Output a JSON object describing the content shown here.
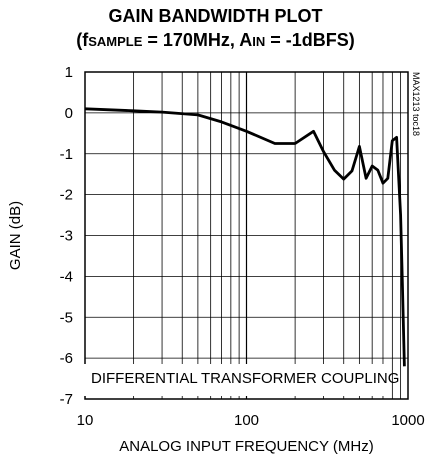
{
  "chart_data": {
    "type": "line",
    "title": "GAIN BANDWIDTH PLOT",
    "subtitle_parts": {
      "open": "(f",
      "f_sub": "SAMPLE",
      "mid": " = 170MHz, A",
      "a_sub": "IN",
      "close": " = -1dBFS)"
    },
    "xlabel": "ANALOG INPUT FREQUENCY (MHz)",
    "ylabel": "GAIN (dB)",
    "xscale": "log",
    "xlim": [
      10,
      1000
    ],
    "ylim": [
      -7,
      1
    ],
    "grid": true,
    "xticks": [
      10,
      100,
      1000
    ],
    "xtick_labels": [
      "10",
      "100",
      "1000"
    ],
    "yticks": [
      1,
      0,
      -1,
      -2,
      -3,
      -4,
      -5,
      -6,
      -7
    ],
    "ytick_labels": [
      "1",
      "0",
      "-1",
      "-2",
      "-3",
      "-4",
      "-5",
      "-6",
      "-7"
    ],
    "annotation": "DIFFERENTIAL TRANSFORMER COUPLING",
    "figure_id": "MAX1213 toc18",
    "series": [
      {
        "x": [
          10,
          20,
          30,
          50,
          70,
          100,
          150,
          200,
          260,
          300,
          350,
          400,
          450,
          500,
          550,
          600,
          650,
          700,
          750,
          800,
          850,
          900,
          920,
          950
        ],
        "y": [
          0.1,
          0.05,
          0.02,
          -0.05,
          -0.22,
          -0.45,
          -0.75,
          -0.75,
          -0.45,
          -0.95,
          -1.4,
          -1.62,
          -1.42,
          -0.82,
          -1.6,
          -1.3,
          -1.4,
          -1.72,
          -1.6,
          -0.68,
          -0.6,
          -2.5,
          -4.0,
          -6.2
        ]
      }
    ]
  }
}
